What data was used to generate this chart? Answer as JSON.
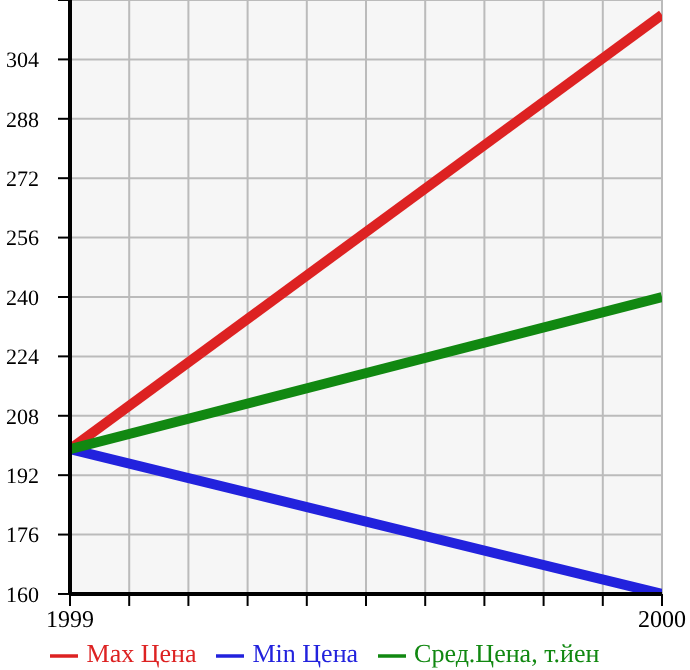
{
  "chart_data": {
    "type": "line",
    "x": [
      1999,
      2000
    ],
    "series": [
      {
        "name": "Max Цена",
        "color": "#dd2222",
        "values": [
          199,
          316
        ]
      },
      {
        "name": "Min Цена",
        "color": "#2222dd",
        "values": [
          199,
          160
        ]
      },
      {
        "name": "Сред.Цена, т.йен",
        "color": "#118811",
        "values": [
          199,
          240
        ]
      }
    ],
    "xlim": [
      1999,
      2000
    ],
    "xticks": [
      1999,
      {
        "value": 1999.1,
        "label": null
      },
      {
        "value": 1999.2,
        "label": null
      },
      {
        "value": 1999.3,
        "label": null
      },
      {
        "value": 1999.4,
        "label": null
      },
      {
        "value": 1999.5,
        "label": null
      },
      {
        "value": 1999.6,
        "label": null
      },
      {
        "value": 1999.7,
        "label": null
      },
      {
        "value": 1999.8,
        "label": null
      },
      {
        "value": 1999.9,
        "label": null
      },
      2000
    ],
    "ylim": [
      160,
      320
    ],
    "yticks": [
      160,
      176,
      192,
      208,
      224,
      240,
      256,
      272,
      288,
      304,
      {
        "value": 320,
        "label": null
      }
    ],
    "grid": true,
    "legend": "bottom",
    "marker": "none",
    "line_style": "solid"
  }
}
